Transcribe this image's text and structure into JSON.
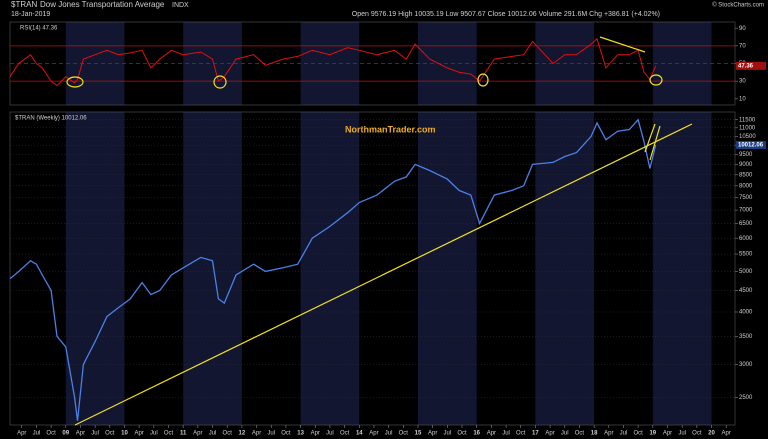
{
  "header": {
    "symbol": "$TRAN",
    "name": "Dow Jones Transportation Average",
    "exchange": "INDX",
    "date": "18-Jan-2019",
    "quote": "Open 9576.19  High 10035.19  Low 9507.67  Close 10012.06  Volume 291.6M  Chg +386.81 (+4.02%)",
    "credit": "© StockCharts.com",
    "watermark": "NorthmanTrader.com"
  },
  "chart_data": [
    {
      "type": "line",
      "title": "RSI(14) 47.36",
      "last_value_label": "47.36",
      "color": "#e01010",
      "x": [
        2008.05,
        2008.2,
        2008.4,
        2008.5,
        2008.6,
        2008.75,
        2008.85,
        2009.0,
        2009.15,
        2009.2,
        2009.3,
        2009.5,
        2009.7,
        2009.9,
        2010.1,
        2010.3,
        2010.45,
        2010.6,
        2010.8,
        2011.0,
        2011.3,
        2011.5,
        2011.6,
        2011.7,
        2011.9,
        2012.2,
        2012.4,
        2012.7,
        2012.95,
        2013.2,
        2013.5,
        2013.8,
        2014.0,
        2014.3,
        2014.6,
        2014.8,
        2014.95,
        2015.2,
        2015.5,
        2015.7,
        2015.9,
        2016.05,
        2016.3,
        2016.6,
        2016.8,
        2016.95,
        2017.3,
        2017.5,
        2017.7,
        2017.95,
        2018.05,
        2018.2,
        2018.4,
        2018.6,
        2018.75,
        2018.85,
        2018.95,
        2019.05
      ],
      "values": [
        35,
        50,
        60,
        50,
        45,
        30,
        25,
        35,
        28,
        32,
        55,
        60,
        65,
        60,
        62,
        65,
        45,
        55,
        65,
        60,
        63,
        55,
        30,
        35,
        55,
        60,
        48,
        55,
        58,
        65,
        60,
        68,
        65,
        60,
        65,
        55,
        72,
        55,
        45,
        40,
        38,
        30,
        55,
        58,
        60,
        75,
        50,
        60,
        60,
        72,
        78,
        45,
        60,
        60,
        65,
        40,
        32,
        47.36
      ],
      "xlim": [
        2008.05,
        2020.4
      ],
      "ylim": [
        3,
        97
      ],
      "yticks": [
        10,
        30,
        50,
        70,
        90
      ],
      "levels": [
        30,
        50,
        70
      ]
    },
    {
      "type": "line",
      "title": "$TRAN (Weekly) 10012.06",
      "last_value_label": "10012.06",
      "color": "#4a80e8",
      "log_scale": true,
      "grid": true,
      "x": [
        2008.05,
        2008.2,
        2008.4,
        2008.5,
        2008.6,
        2008.75,
        2008.85,
        2009.0,
        2009.15,
        2009.2,
        2009.3,
        2009.5,
        2009.7,
        2009.9,
        2010.1,
        2010.3,
        2010.45,
        2010.6,
        2010.8,
        2011.0,
        2011.3,
        2011.5,
        2011.6,
        2011.7,
        2011.9,
        2012.2,
        2012.4,
        2012.7,
        2012.95,
        2013.2,
        2013.5,
        2013.8,
        2014.0,
        2014.3,
        2014.6,
        2014.8,
        2014.95,
        2015.2,
        2015.5,
        2015.7,
        2015.9,
        2016.05,
        2016.3,
        2016.6,
        2016.8,
        2016.95,
        2017.3,
        2017.5,
        2017.7,
        2017.95,
        2018.05,
        2018.2,
        2018.4,
        2018.6,
        2018.75,
        2018.85,
        2018.95,
        2019.05
      ],
      "values": [
        4800,
        5000,
        5300,
        5200,
        4900,
        4500,
        3500,
        3300,
        2500,
        2200,
        3000,
        3400,
        3900,
        4100,
        4300,
        4700,
        4400,
        4500,
        4900,
        5100,
        5400,
        5300,
        4300,
        4200,
        4900,
        5200,
        5000,
        5100,
        5200,
        6000,
        6400,
        6900,
        7300,
        7600,
        8200,
        8400,
        9000,
        8700,
        8300,
        7800,
        7600,
        6500,
        7600,
        7800,
        8000,
        9000,
        9100,
        9400,
        9600,
        10500,
        11300,
        10300,
        10800,
        10900,
        11500,
        10200,
        8800,
        10012
      ],
      "xlim": [
        2008.05,
        2020.4
      ],
      "ylim": [
        2150,
        12000
      ],
      "yticks": [
        2500,
        3000,
        3500,
        4000,
        4500,
        5000,
        5500,
        6000,
        6500,
        7000,
        7500,
        8000,
        8500,
        9000,
        9500,
        10000,
        10500,
        11000,
        11500
      ],
      "xticks": [
        {
          "value": 2008.25,
          "label": "Apr"
        },
        {
          "value": 2008.5,
          "label": "Jul"
        },
        {
          "value": 2008.75,
          "label": "Oct"
        },
        {
          "value": 2009,
          "label": "09"
        },
        {
          "value": 2009.25,
          "label": "Apr"
        },
        {
          "value": 2009.5,
          "label": "Jul"
        },
        {
          "value": 2009.75,
          "label": "Oct"
        },
        {
          "value": 2010,
          "label": "10"
        },
        {
          "value": 2010.25,
          "label": "Apr"
        },
        {
          "value": 2010.5,
          "label": "Jul"
        },
        {
          "value": 2010.75,
          "label": "Oct"
        },
        {
          "value": 2011,
          "label": "11"
        },
        {
          "value": 2011.25,
          "label": "Apr"
        },
        {
          "value": 2011.5,
          "label": "Jul"
        },
        {
          "value": 2011.75,
          "label": "Oct"
        },
        {
          "value": 2012,
          "label": "12"
        },
        {
          "value": 2012.25,
          "label": "Apr"
        },
        {
          "value": 2012.5,
          "label": "Jul"
        },
        {
          "value": 2012.75,
          "label": "Oct"
        },
        {
          "value": 2013,
          "label": "13"
        },
        {
          "value": 2013.25,
          "label": "Apr"
        },
        {
          "value": 2013.5,
          "label": "Jul"
        },
        {
          "value": 2013.75,
          "label": "Oct"
        },
        {
          "value": 2014,
          "label": "14"
        },
        {
          "value": 2014.25,
          "label": "Apr"
        },
        {
          "value": 2014.5,
          "label": "Jul"
        },
        {
          "value": 2014.75,
          "label": "Oct"
        },
        {
          "value": 2015,
          "label": "15"
        },
        {
          "value": 2015.25,
          "label": "Apr"
        },
        {
          "value": 2015.5,
          "label": "Jul"
        },
        {
          "value": 2015.75,
          "label": "Oct"
        },
        {
          "value": 2016,
          "label": "16"
        },
        {
          "value": 2016.25,
          "label": "Apr"
        },
        {
          "value": 2016.5,
          "label": "Jul"
        },
        {
          "value": 2016.75,
          "label": "Oct"
        },
        {
          "value": 2017,
          "label": "17"
        },
        {
          "value": 2017.25,
          "label": "Apr"
        },
        {
          "value": 2017.5,
          "label": "Jul"
        },
        {
          "value": 2017.75,
          "label": "Oct"
        },
        {
          "value": 2018,
          "label": "18"
        },
        {
          "value": 2018.25,
          "label": "Apr"
        },
        {
          "value": 2018.5,
          "label": "Jul"
        },
        {
          "value": 2018.75,
          "label": "Oct"
        },
        {
          "value": 2019,
          "label": "19"
        },
        {
          "value": 2019.25,
          "label": "Apr"
        },
        {
          "value": 2019.5,
          "label": "Jul"
        },
        {
          "value": 2019.75,
          "label": "Oct"
        },
        {
          "value": 2020,
          "label": "20"
        },
        {
          "value": 2020.25,
          "label": "Apr"
        }
      ]
    }
  ]
}
